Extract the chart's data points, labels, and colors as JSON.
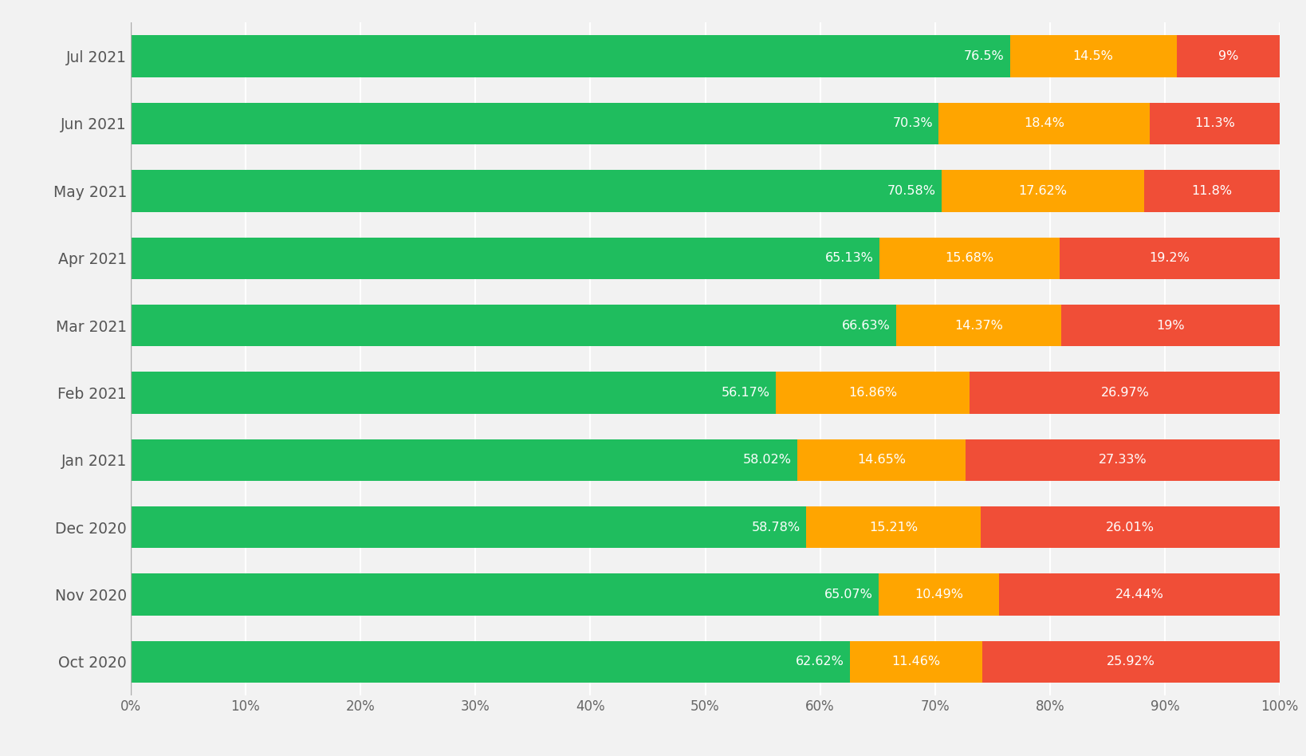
{
  "months": [
    "Oct 2020",
    "Nov 2020",
    "Dec 2020",
    "Jan 2021",
    "Feb 2021",
    "Mar 2021",
    "Apr 2021",
    "May 2021",
    "Jun 2021",
    "Jul 2021"
  ],
  "good": [
    62.62,
    65.07,
    58.78,
    58.02,
    56.17,
    66.63,
    65.13,
    70.58,
    70.3,
    76.5
  ],
  "needs_improvement": [
    11.46,
    10.49,
    15.21,
    14.65,
    16.86,
    14.37,
    15.68,
    17.62,
    18.4,
    14.5
  ],
  "poor": [
    25.92,
    24.44,
    26.01,
    27.33,
    26.97,
    19.0,
    19.2,
    11.8,
    11.3,
    9.0
  ],
  "good_labels": [
    "62.62%",
    "65.07%",
    "58.78%",
    "58.02%",
    "56.17%",
    "66.63%",
    "65.13%",
    "70.58%",
    "70.3%",
    "76.5%"
  ],
  "needs_improvement_labels": [
    "11.46%",
    "10.49%",
    "15.21%",
    "14.65%",
    "16.86%",
    "14.37%",
    "15.68%",
    "17.62%",
    "18.4%",
    "14.5%"
  ],
  "poor_labels": [
    "25.92%",
    "24.44%",
    "26.01%",
    "27.33%",
    "26.97%",
    "19%",
    "19.2%",
    "11.8%",
    "11.3%",
    "9%"
  ],
  "color_good": "#1fbd5e",
  "color_needs_improvement": "#FFA500",
  "color_poor": "#F04E37",
  "background_color": "#f2f2f2",
  "text_color_white": "#ffffff",
  "bar_height": 0.62,
  "xlim": [
    0,
    100
  ],
  "xtick_labels": [
    "0%",
    "10%",
    "20%",
    "30%",
    "40%",
    "50%",
    "60%",
    "70%",
    "80%",
    "90%",
    "100%"
  ],
  "xtick_values": [
    0,
    10,
    20,
    30,
    40,
    50,
    60,
    70,
    80,
    90,
    100
  ],
  "label_fontsize": 11.5,
  "tick_fontsize": 12,
  "ytick_fontsize": 13.5
}
